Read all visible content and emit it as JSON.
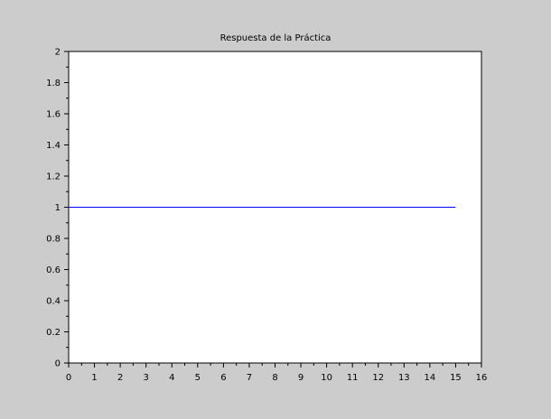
{
  "chart_data": {
    "type": "line",
    "title": "Respuesta de la Práctica",
    "xlabel": "",
    "ylabel": "",
    "xlim": [
      0,
      16
    ],
    "ylim": [
      0,
      2
    ],
    "x_ticks": [
      "0",
      "1",
      "2",
      "3",
      "4",
      "5",
      "6",
      "7",
      "8",
      "9",
      "10",
      "11",
      "12",
      "13",
      "14",
      "15",
      "16"
    ],
    "y_ticks": [
      "0",
      "0.2",
      "0.4",
      "0.6",
      "0.8",
      "1",
      "1.2",
      "1.4",
      "1.6",
      "1.8",
      "2"
    ],
    "grid": false,
    "series": [
      {
        "x": [
          0,
          15
        ],
        "values": [
          1,
          1
        ],
        "color": "#0000ff"
      }
    ]
  },
  "colors": {
    "background": "#cccccc",
    "axes_face": "#ffffff",
    "axis_line": "#000000"
  }
}
